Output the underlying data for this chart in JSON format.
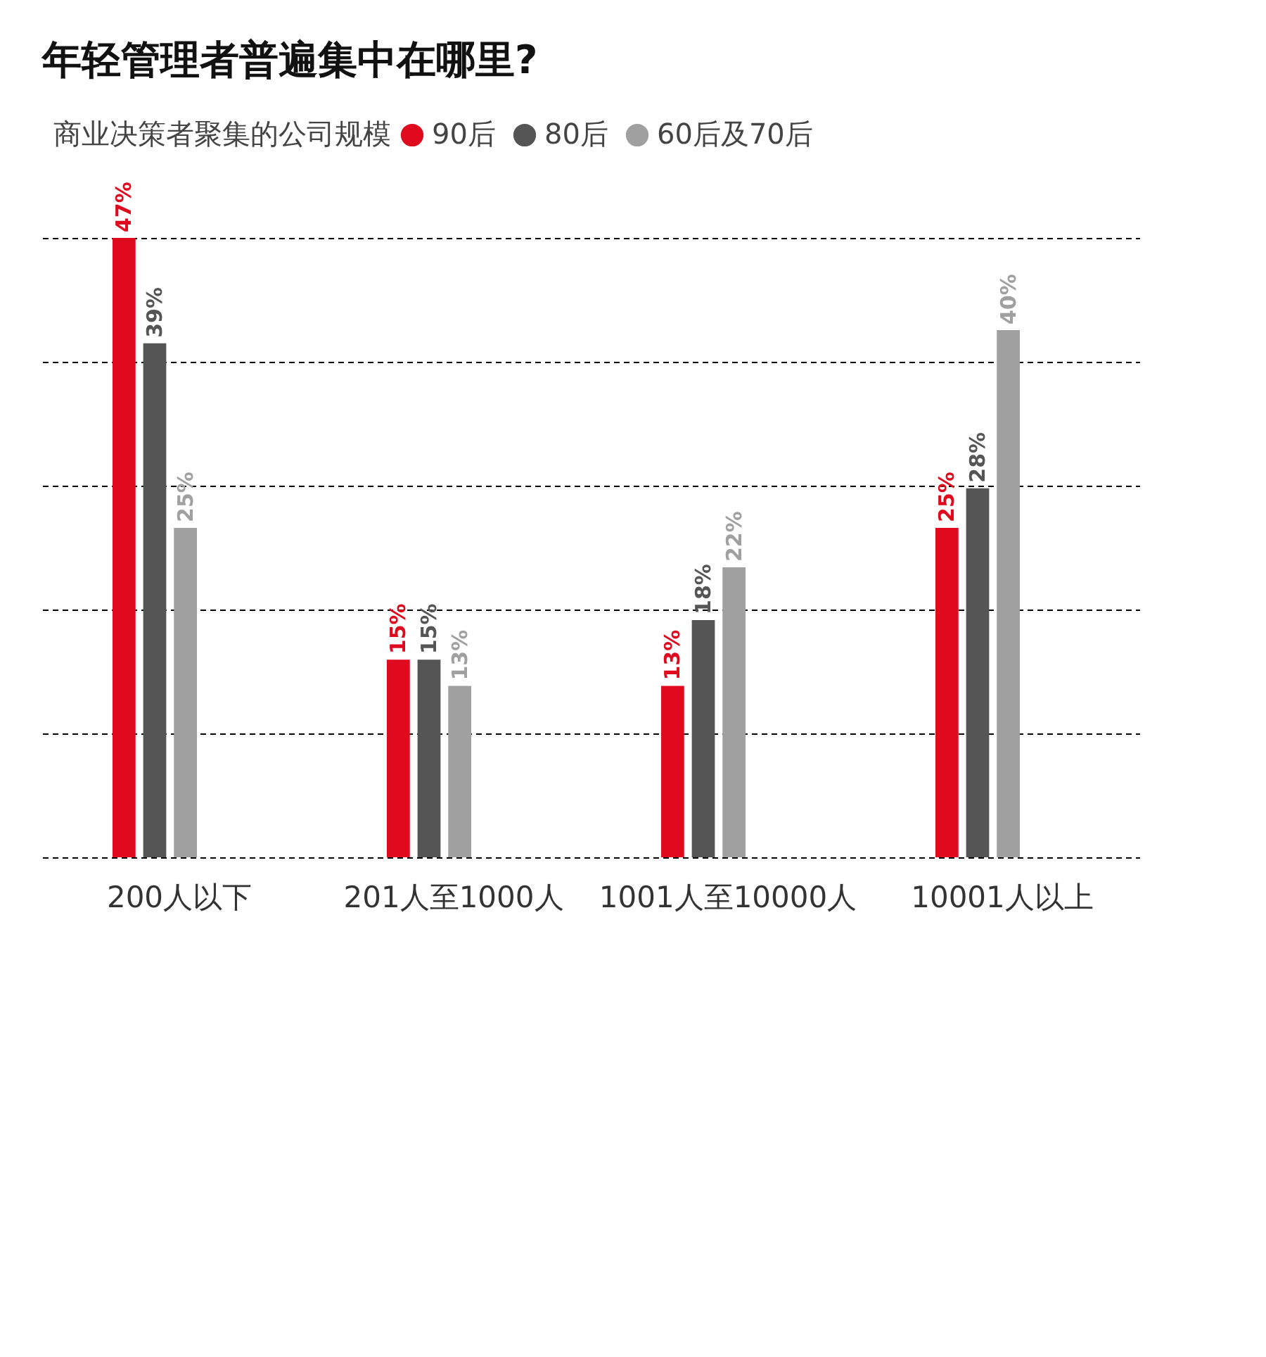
{
  "chart_data": {
    "type": "bar",
    "title": "年轻管理者普遍集中在哪里?",
    "legend_title": "商业决策者聚集的公司规模",
    "categories": [
      "200人以下",
      "201人至1000人",
      "1001人至10000人",
      "10001人以上"
    ],
    "series": [
      {
        "name": "90后",
        "color": "#e00a1e",
        "values": [
          47,
          15,
          13,
          25
        ],
        "value_labels": [
          "47%",
          "15%",
          "13%",
          "25%"
        ]
      },
      {
        "name": "80后",
        "color": "#555555",
        "values": [
          39,
          15,
          18,
          28
        ],
        "value_labels": [
          "39%",
          "15%",
          "18%",
          "28%"
        ]
      },
      {
        "name": "60后及70后",
        "color": "#a0a0a0",
        "values": [
          25,
          13,
          22,
          40
        ],
        "value_labels": [
          "25%",
          "13%",
          "22%",
          "40%"
        ]
      }
    ],
    "grid": "y",
    "legend": "top left",
    "tick_labels": "x"
  }
}
